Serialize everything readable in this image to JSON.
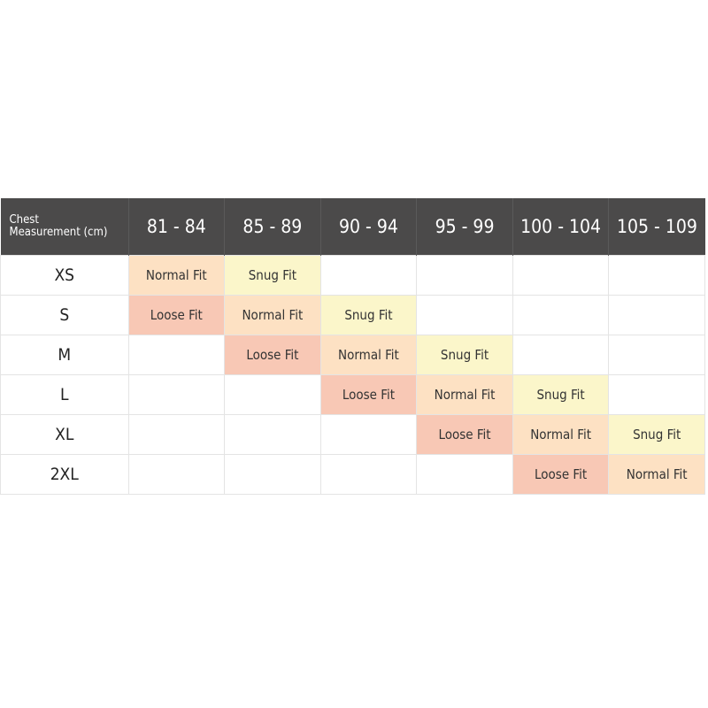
{
  "header": {
    "label_line1": "Chest",
    "label_line2": "Measurement (cm)",
    "ranges": [
      "81 - 84",
      "85 - 89",
      "90 - 94",
      "95 - 99",
      "100 - 104",
      "105 - 109"
    ]
  },
  "colors": {
    "header": "#4b4a4a",
    "normal_fit": "#fde1c3",
    "snug_fit": "#fbf6ca",
    "loose_fit": "#f8c8b5"
  },
  "rows": [
    {
      "size": "XS",
      "cells": [
        "Normal Fit",
        "Snug Fit",
        "",
        "",
        "",
        ""
      ]
    },
    {
      "size": "S",
      "cells": [
        "Loose Fit",
        "Normal Fit",
        "Snug Fit",
        "",
        "",
        ""
      ]
    },
    {
      "size": "M",
      "cells": [
        "",
        "Loose Fit",
        "Normal Fit",
        "Snug Fit",
        "",
        ""
      ]
    },
    {
      "size": "L",
      "cells": [
        "",
        "",
        "Loose Fit",
        "Normal Fit",
        "Snug Fit",
        ""
      ]
    },
    {
      "size": "XL",
      "cells": [
        "",
        "",
        "",
        "Loose Fit",
        "Normal Fit",
        "Snug Fit"
      ]
    },
    {
      "size": "2XL",
      "cells": [
        "",
        "",
        "",
        "",
        "Loose Fit",
        "Normal Fit"
      ]
    }
  ]
}
